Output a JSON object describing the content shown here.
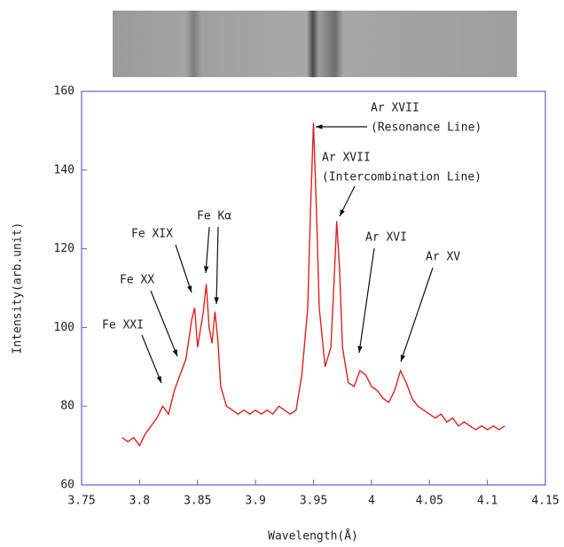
{
  "chart_data": {
    "type": "line",
    "x_label": "Wavelength(Å)",
    "y_label": "Intensity(arb.unit)",
    "xlim": [
      3.75,
      4.15
    ],
    "xticks": [
      3.75,
      3.8,
      3.85,
      3.9,
      3.95,
      4,
      4.05,
      4.1,
      4.15
    ],
    "ylim": [
      60,
      160
    ],
    "yticks": [
      60,
      80,
      100,
      120,
      140,
      160
    ],
    "color": "#e02020",
    "x": [
      3.785,
      3.79,
      3.795,
      3.8,
      3.805,
      3.81,
      3.815,
      3.82,
      3.825,
      3.83,
      3.835,
      3.84,
      3.845,
      3.8475,
      3.85,
      3.855,
      3.8575,
      3.86,
      3.8625,
      3.865,
      3.8675,
      3.87,
      3.875,
      3.88,
      3.885,
      3.89,
      3.895,
      3.9,
      3.905,
      3.91,
      3.915,
      3.92,
      3.925,
      3.93,
      3.935,
      3.94,
      3.945,
      3.9475,
      3.95,
      3.9525,
      3.955,
      3.96,
      3.965,
      3.9675,
      3.97,
      3.9725,
      3.975,
      3.98,
      3.985,
      3.99,
      3.995,
      4,
      4.005,
      4.01,
      4.015,
      4.02,
      4.025,
      4.03,
      4.035,
      4.04,
      4.045,
      4.05,
      4.055,
      4.06,
      4.065,
      4.07,
      4.075,
      4.08,
      4.085,
      4.09,
      4.095,
      4.1,
      4.105,
      4.11,
      4.115
    ],
    "values": [
      72,
      71,
      72,
      70,
      73,
      75,
      77,
      80,
      78,
      84,
      88,
      92,
      102,
      105,
      95,
      104,
      111,
      100,
      96,
      104,
      97,
      85,
      80,
      79,
      78,
      79,
      78,
      79,
      78,
      79,
      78,
      80,
      79,
      78,
      79,
      88,
      105,
      130,
      152,
      130,
      105,
      90,
      95,
      110,
      127,
      115,
      95,
      86,
      85,
      89,
      88,
      85,
      84,
      82,
      81,
      84,
      89,
      86,
      82,
      80,
      79,
      78,
      77,
      78,
      76,
      77,
      75,
      76,
      75,
      74,
      75,
      74,
      75,
      74,
      75
    ],
    "annotations": [
      {
        "lines": [
          "Fe XXI"
        ]
      },
      {
        "lines": [
          "Fe XX"
        ]
      },
      {
        "lines": [
          "Fe XIX"
        ]
      },
      {
        "lines": [
          "Fe Kα"
        ]
      },
      {
        "lines": [
          "Ar XVII",
          "(Resonance Line)"
        ]
      },
      {
        "lines": [
          "Ar XVII",
          "(Intercombination Line)"
        ]
      },
      {
        "lines": [
          "Ar XVI"
        ]
      },
      {
        "lines": [
          "Ar XV"
        ]
      }
    ]
  }
}
